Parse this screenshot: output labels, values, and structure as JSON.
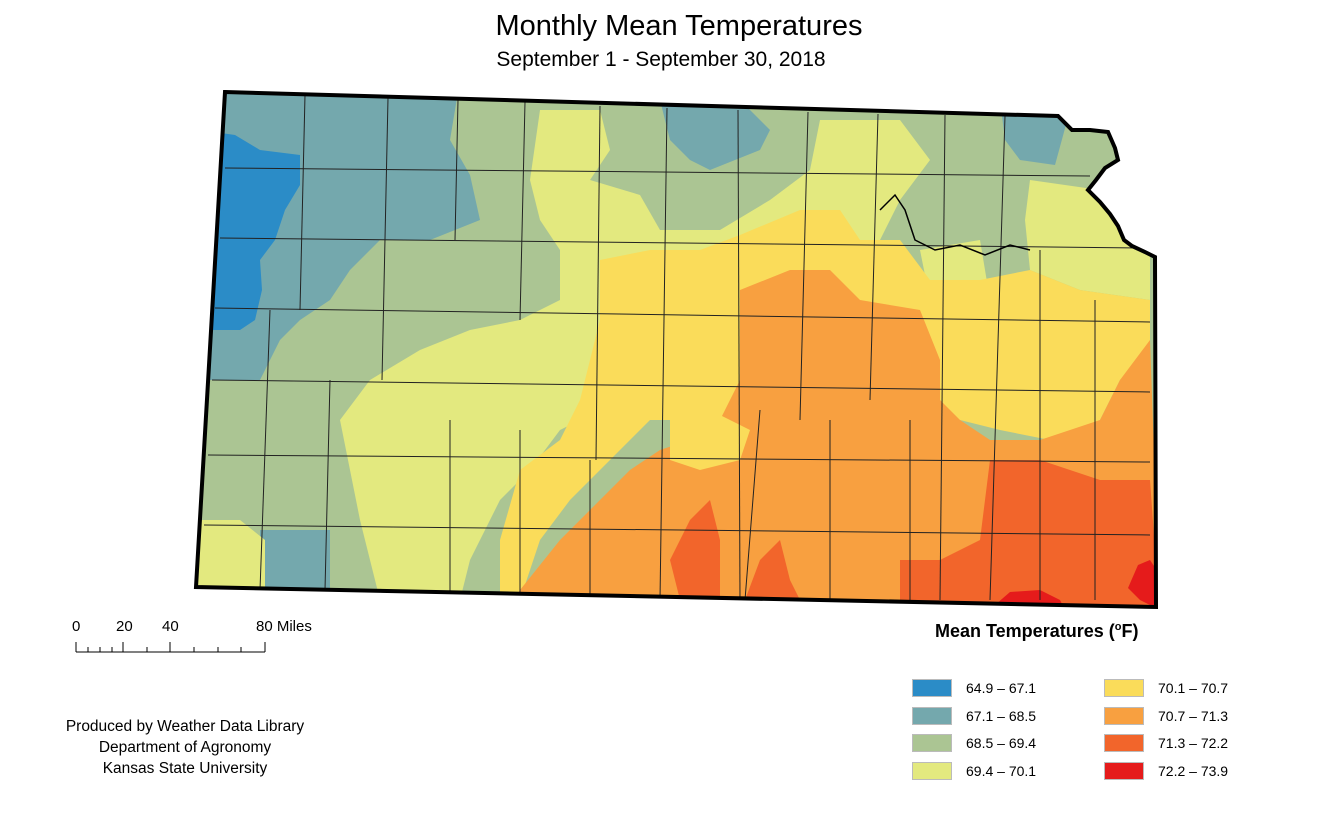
{
  "title": "Monthly Mean Temperatures",
  "subtitle": "September 1 - September 30, 2018",
  "scale": {
    "ticks": [
      "0",
      "20",
      "40",
      "80 Miles"
    ]
  },
  "credits": {
    "line1": "Produced by Weather Data Library",
    "line2": "Department of Agronomy",
    "line3": "Kansas State University"
  },
  "legend": {
    "title_main": "Mean Temperatures (",
    "title_sup": "o",
    "title_end": "F)",
    "classes": [
      {
        "label": "64.9 – 67.1",
        "color": "#2b8cc7"
      },
      {
        "label": "67.1 – 68.5",
        "color": "#74a8ad"
      },
      {
        "label": "68.5 – 69.4",
        "color": "#abc593"
      },
      {
        "label": "69.4 – 70.1",
        "color": "#e3e97f"
      },
      {
        "label": "70.1 – 70.7",
        "color": "#fadc5a"
      },
      {
        "label": "70.7 – 71.3",
        "color": "#f8a040"
      },
      {
        "label": "71.3 – 72.2",
        "color": "#f2652b"
      },
      {
        "label": "72.2 – 73.9",
        "color": "#e51b1b"
      }
    ]
  },
  "map": {
    "region": "Kansas",
    "outline_color": "#000000",
    "county_line_color": "#222222"
  }
}
